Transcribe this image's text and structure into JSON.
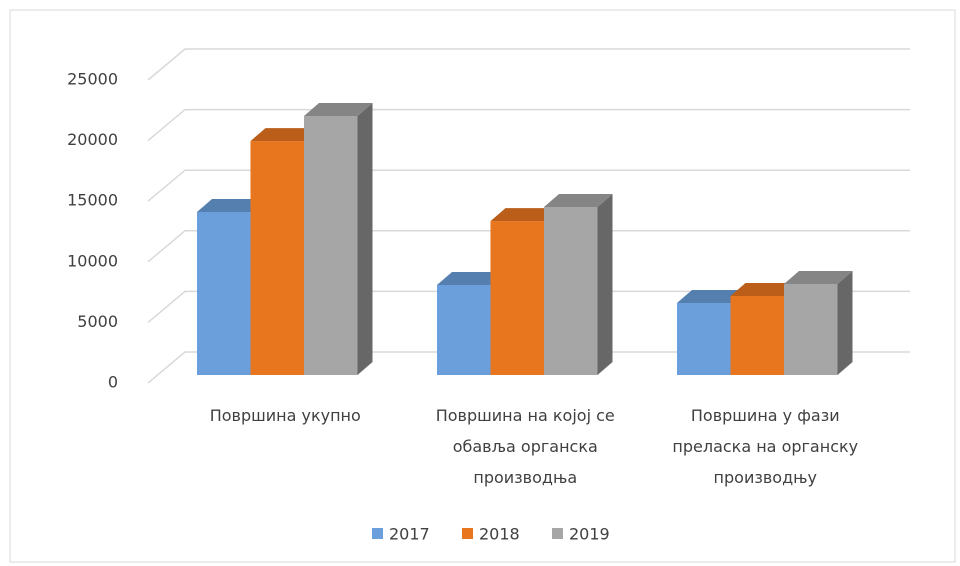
{
  "chart_data": {
    "type": "bar3d",
    "categories": [
      "Површина укупно",
      "Површина на којој се обавља органска производња",
      "Површина у фази преласка на органску производњу"
    ],
    "series": [
      {
        "name": "2017",
        "color": "#6a9fdb",
        "values": [
          13450,
          7430,
          5940
        ]
      },
      {
        "name": "2018",
        "color": "#e8761f",
        "values": [
          19300,
          12700,
          6520
        ]
      },
      {
        "name": "2019",
        "color": "#a6a6a6",
        "values": [
          21370,
          13860,
          7510
        ]
      }
    ],
    "ylim": [
      0,
      25000
    ],
    "yticks": [
      0,
      5000,
      10000,
      15000,
      20000,
      25000
    ],
    "grid": true,
    "legend": "bottom"
  }
}
